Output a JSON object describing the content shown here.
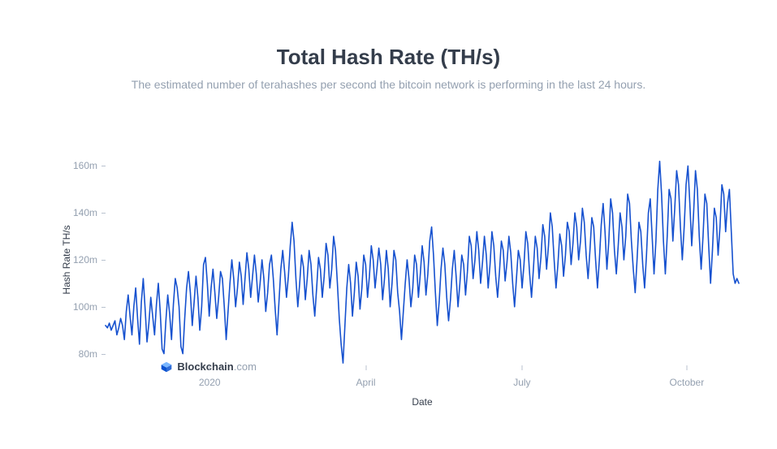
{
  "chart": {
    "type": "line",
    "title": "Total Hash Rate (TH/s)",
    "title_fontsize": 26,
    "title_fontweight": 700,
    "title_color": "#343d4b",
    "subtitle": "The estimated number of terahashes per second the bitcoin network is performing in the last 24 hours.",
    "subtitle_fontsize": 14,
    "subtitle_color": "#94a0b0",
    "background_color": "#ffffff",
    "line_color": "#1651cf",
    "line_width": 1.6,
    "x_axis": {
      "label": "Date",
      "label_fontsize": 12,
      "label_color": "#343d4b",
      "tick_fontsize": 12,
      "tick_color": "#94a0b0",
      "tick_mark_color": "#b9c2cf",
      "range_days": [
        0,
        365
      ],
      "ticks": [
        {
          "pos_days": 60,
          "label": "2020"
        },
        {
          "pos_days": 150,
          "label": "April"
        },
        {
          "pos_days": 240,
          "label": "July"
        },
        {
          "pos_days": 335,
          "label": "October"
        }
      ]
    },
    "y_axis": {
      "label": "Hash Rate TH/s",
      "label_fontsize": 12,
      "label_color": "#343d4b",
      "tick_fontsize": 12,
      "tick_color": "#94a0b0",
      "tick_mark_color": "#b9c2cf",
      "range": [
        75,
        165
      ],
      "ticks": [
        {
          "value": 80,
          "label": "80m"
        },
        {
          "value": 100,
          "label": "100m"
        },
        {
          "value": 120,
          "label": "120m"
        },
        {
          "value": 140,
          "label": "140m"
        },
        {
          "value": 160,
          "label": "160m"
        }
      ]
    },
    "watermark": {
      "brand_main": "Blockchain",
      "brand_tld": ".com",
      "color_main": "#343d4b",
      "color_tld": "#94a0b0",
      "cube_color_light": "#7ab7ff",
      "cube_color_dark": "#0a52d0",
      "pos_x_days": 32,
      "pos_y_value": 77
    },
    "series": {
      "name": "hash_rate",
      "values": [
        92,
        91,
        93,
        90,
        92,
        94,
        88,
        91,
        95,
        92,
        86,
        98,
        105,
        96,
        88,
        100,
        108,
        95,
        84,
        102,
        112,
        99,
        85,
        93,
        104,
        96,
        88,
        101,
        110,
        98,
        82,
        80,
        94,
        105,
        97,
        86,
        101,
        112,
        108,
        100,
        83,
        80,
        95,
        108,
        115,
        106,
        92,
        102,
        113,
        104,
        90,
        100,
        118,
        121,
        110,
        96,
        108,
        116,
        106,
        95,
        104,
        115,
        112,
        100,
        86,
        98,
        110,
        120,
        112,
        100,
        108,
        119,
        113,
        101,
        112,
        123,
        116,
        104,
        113,
        122,
        114,
        102,
        110,
        120,
        112,
        98,
        106,
        118,
        122,
        112,
        99,
        88,
        102,
        116,
        124,
        115,
        104,
        113,
        126,
        136,
        128,
        112,
        100,
        110,
        122,
        117,
        103,
        112,
        124,
        118,
        105,
        96,
        108,
        121,
        116,
        104,
        113,
        127,
        122,
        108,
        116,
        130,
        124,
        110,
        95,
        84,
        76,
        92,
        108,
        118,
        110,
        96,
        106,
        119,
        113,
        99,
        108,
        122,
        118,
        104,
        113,
        126,
        120,
        108,
        116,
        125,
        118,
        103,
        112,
        124,
        116,
        100,
        110,
        124,
        120,
        106,
        98,
        86,
        98,
        110,
        120,
        112,
        100,
        108,
        122,
        118,
        104,
        114,
        126,
        119,
        105,
        114,
        128,
        134,
        122,
        106,
        92,
        102,
        116,
        125,
        118,
        104,
        94,
        103,
        116,
        124,
        113,
        100,
        110,
        122,
        118,
        105,
        115,
        130,
        126,
        112,
        120,
        132,
        124,
        110,
        119,
        130,
        122,
        108,
        118,
        132,
        126,
        113,
        104,
        115,
        128,
        124,
        111,
        119,
        130,
        123,
        110,
        100,
        112,
        124,
        120,
        108,
        118,
        132,
        127,
        114,
        104,
        116,
        130,
        125,
        112,
        121,
        135,
        130,
        116,
        126,
        140,
        134,
        120,
        108,
        118,
        131,
        126,
        113,
        122,
        136,
        132,
        118,
        127,
        140,
        134,
        120,
        128,
        142,
        136,
        122,
        112,
        124,
        138,
        134,
        120,
        108,
        120,
        135,
        144,
        132,
        116,
        128,
        146,
        140,
        124,
        114,
        126,
        140,
        134,
        120,
        130,
        148,
        144,
        128,
        116,
        106,
        120,
        136,
        132,
        118,
        108,
        122,
        140,
        146,
        130,
        114,
        128,
        150,
        162,
        148,
        128,
        114,
        130,
        150,
        146,
        128,
        142,
        158,
        152,
        134,
        120,
        134,
        152,
        160,
        144,
        126,
        140,
        158,
        150,
        130,
        116,
        130,
        148,
        144,
        126,
        110,
        124,
        142,
        138,
        122,
        134,
        152,
        148,
        132,
        144,
        150,
        132,
        114,
        110,
        112,
        110
      ]
    }
  }
}
